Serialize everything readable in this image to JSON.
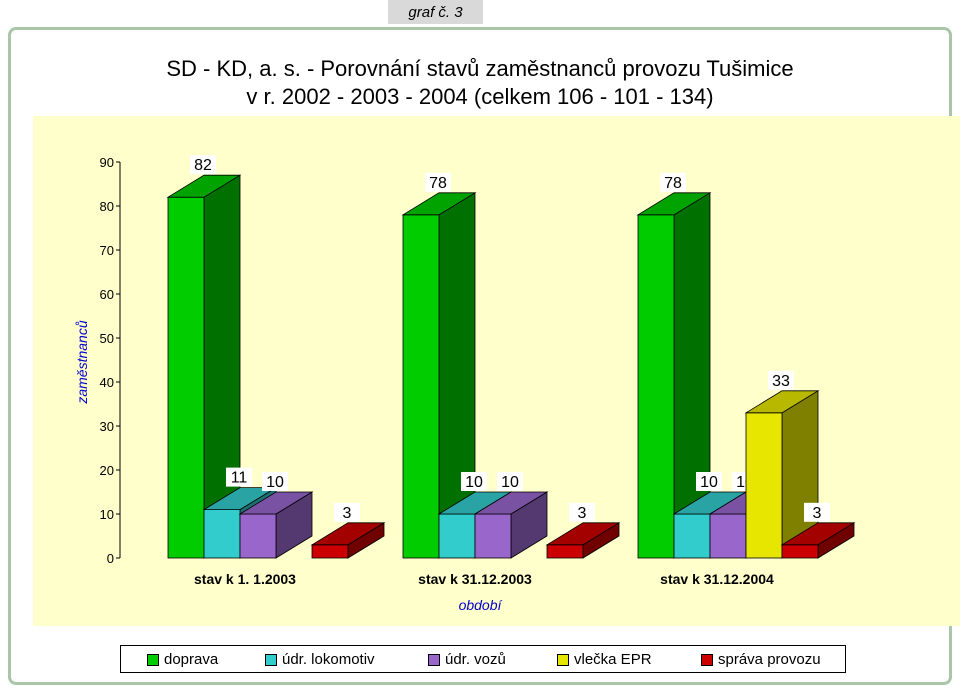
{
  "tag": "graf č. 3",
  "title_line1": "SD - KD, a. s. - Porovnání stavů zaměstnanců provozu Tušimice",
  "title_line2": "v r. 2002 - 2003 - 2004 (celkem 106 - 101 - 134)",
  "chart_data": {
    "type": "bar",
    "categories": [
      "stav k 1. 1.2003",
      "stav k 31.12.2003",
      "stav k 31.12.2004"
    ],
    "series": [
      {
        "name": "doprava",
        "values": [
          82,
          78,
          78
        ],
        "color": "#00cc00"
      },
      {
        "name": "údr. lokomotiv",
        "values": [
          11,
          10,
          10
        ],
        "color": "#33cccc"
      },
      {
        "name": "údr. vozů",
        "values": [
          10,
          10,
          10
        ],
        "color": "#9966cc"
      },
      {
        "name": "vlečka EPR",
        "values": [
          null,
          null,
          33
        ],
        "color": "#e6e600"
      },
      {
        "name": "správa provozu",
        "values": [
          3,
          3,
          3
        ],
        "color": "#cc0000"
      }
    ],
    "data_labels": [
      [
        "82",
        "11",
        "10",
        "",
        "3"
      ],
      [
        "78",
        "10",
        "10",
        "",
        "3"
      ],
      [
        "78",
        "10",
        "10",
        "33",
        "3"
      ]
    ],
    "xlabel": "období",
    "ylabel": "zaměstnanců",
    "yticks": [
      "0",
      "10",
      "20",
      "30",
      "40",
      "50",
      "60",
      "70",
      "80",
      "90"
    ],
    "ylim": [
      0,
      90
    ],
    "legend_position": "bottom",
    "bar_style": "3d-cylinder"
  }
}
